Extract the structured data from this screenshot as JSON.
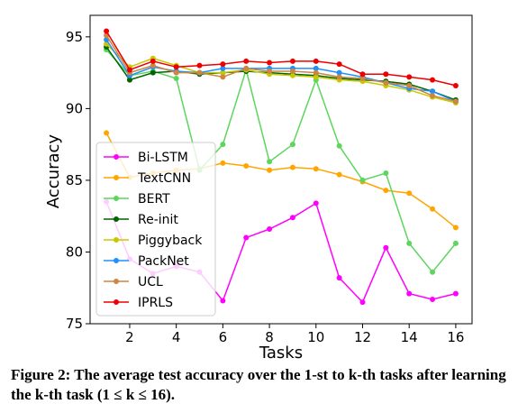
{
  "chart_data": {
    "type": "line",
    "xlabel": "Tasks",
    "ylabel": "Accuracy",
    "xlim": [
      0.3,
      16.7
    ],
    "ylim": [
      75,
      96.5
    ],
    "xticks": [
      2,
      4,
      6,
      8,
      10,
      12,
      14,
      16
    ],
    "yticks": [
      75,
      80,
      85,
      90,
      95
    ],
    "grid": false,
    "legend_position": "left",
    "x": [
      1,
      2,
      3,
      4,
      5,
      6,
      7,
      8,
      9,
      10,
      11,
      12,
      13,
      14,
      15,
      16
    ],
    "series": [
      {
        "name": "Bi-LSTM",
        "color": "#ff00ff",
        "values": [
          83.5,
          79.5,
          78.5,
          79.0,
          78.6,
          76.6,
          81.0,
          81.6,
          82.4,
          83.4,
          78.2,
          76.5,
          80.3,
          77.1,
          76.7,
          77.1
        ]
      },
      {
        "name": "TextCNN",
        "color": "#ffa500",
        "values": [
          88.3,
          85.2,
          85.5,
          85.7,
          85.8,
          86.2,
          86.0,
          85.7,
          85.9,
          85.8,
          85.4,
          84.9,
          84.3,
          84.1,
          83.0,
          81.7
        ]
      },
      {
        "name": "BERT",
        "color": "#5cd65c",
        "values": [
          94.1,
          92.3,
          92.6,
          92.1,
          85.7,
          87.5,
          92.7,
          86.3,
          87.5,
          92.0,
          87.4,
          85.0,
          85.5,
          80.6,
          78.6,
          80.6
        ]
      },
      {
        "name": "Re-init",
        "color": "#006400",
        "values": [
          94.3,
          92.0,
          92.5,
          92.6,
          92.4,
          92.5,
          92.6,
          92.5,
          92.4,
          92.3,
          92.1,
          92.0,
          91.9,
          91.7,
          91.2,
          90.6
        ]
      },
      {
        "name": "Piggyback",
        "color": "#c8c800",
        "values": [
          94.5,
          92.9,
          93.5,
          93.0,
          92.5,
          92.5,
          92.7,
          92.4,
          92.3,
          92.2,
          92.0,
          91.9,
          91.6,
          91.3,
          90.8,
          90.4
        ]
      },
      {
        "name": "PackNet",
        "color": "#1e90ff",
        "values": [
          94.8,
          92.3,
          92.9,
          92.6,
          92.5,
          92.8,
          92.8,
          92.8,
          92.8,
          92.8,
          92.5,
          92.2,
          91.8,
          91.4,
          91.2,
          90.5
        ]
      },
      {
        "name": "UCL",
        "color": "#cd853f",
        "values": [
          95.1,
          92.5,
          93.0,
          92.5,
          92.5,
          92.2,
          92.8,
          92.6,
          92.6,
          92.5,
          92.2,
          92.1,
          91.8,
          91.6,
          90.9,
          90.5
        ]
      },
      {
        "name": "IPRLS",
        "color": "#ee0000",
        "values": [
          95.4,
          92.7,
          93.3,
          92.9,
          93.0,
          93.1,
          93.3,
          93.2,
          93.3,
          93.3,
          93.1,
          92.4,
          92.4,
          92.2,
          92.0,
          91.6
        ]
      }
    ]
  },
  "caption": {
    "text": "Figure 2: The average test accuracy over the 1-st to k-th tasks after learning the k-th task (1 ≤ k ≤ 16)."
  }
}
